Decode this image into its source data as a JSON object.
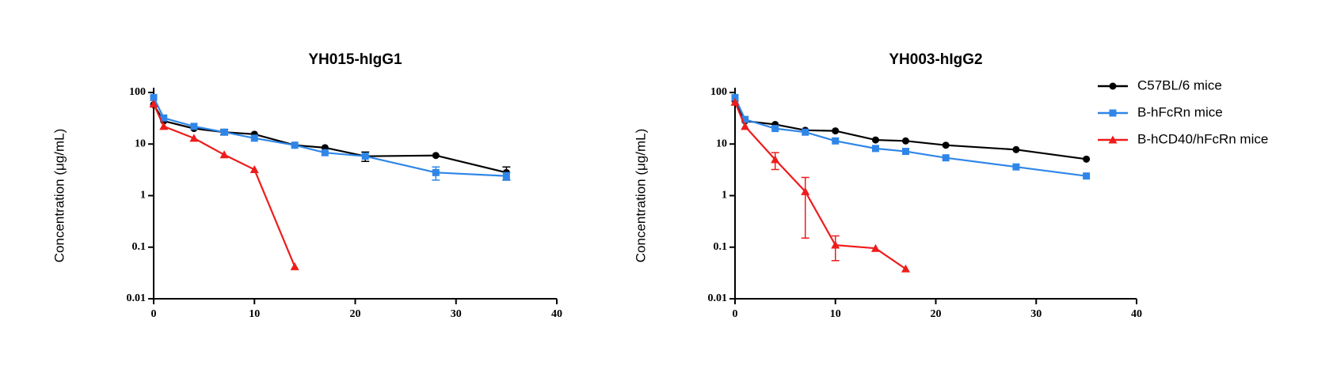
{
  "chart_data": [
    {
      "type": "line",
      "title": "YH015-hIgG1",
      "y_label": "Concentration (μg/mL)",
      "y_scale": "log",
      "xlim": [
        0,
        40
      ],
      "xticks": [
        0,
        10,
        20,
        30,
        40
      ],
      "ylim": [
        0.01,
        100
      ],
      "yticks": [
        0.01,
        0.1,
        1,
        10,
        100
      ],
      "series": [
        {
          "color": "#000000",
          "marker": "circle",
          "x": [
            0,
            1,
            4,
            7,
            10,
            14,
            17,
            21,
            28,
            35
          ],
          "values": [
            58,
            28,
            20,
            17,
            15.5,
            9.5,
            8.5,
            5.8,
            6.0,
            2.8
          ],
          "errors": [
            null,
            null,
            null,
            2,
            null,
            null,
            null,
            1.2,
            null,
            0.8
          ]
        },
        {
          "color": "#2f86e8",
          "marker": "square",
          "x": [
            0,
            1,
            4,
            7,
            10,
            14,
            17,
            21,
            28,
            35
          ],
          "values": [
            80,
            32,
            22,
            17,
            13,
            9.5,
            6.8,
            5.8,
            2.8,
            2.4
          ],
          "errors": [
            null,
            null,
            null,
            null,
            null,
            null,
            null,
            null,
            0.8,
            0.4
          ]
        },
        {
          "color": "#ee1c1c",
          "marker": "triangle",
          "x": [
            0,
            1,
            4,
            7,
            10,
            14
          ],
          "values": [
            60,
            22,
            13,
            6.2,
            3.2,
            0.042
          ]
        }
      ]
    },
    {
      "type": "line",
      "title": "YH003-hIgG2",
      "y_label": "Concentration (μg/mL)",
      "y_scale": "log",
      "legend": "right",
      "xlim": [
        0,
        40
      ],
      "xticks": [
        0,
        10,
        20,
        30,
        40
      ],
      "ylim": [
        0.01,
        100
      ],
      "yticks": [
        0.01,
        0.1,
        1,
        10,
        100
      ],
      "series": [
        {
          "name": "C57BL/6 mice",
          "color": "#000000",
          "marker": "circle",
          "x": [
            0,
            1,
            4,
            7,
            10,
            14,
            17,
            21,
            28,
            35
          ],
          "values": [
            70,
            28,
            24,
            18.5,
            18,
            12,
            11.5,
            9.5,
            7.8,
            5.1
          ]
        },
        {
          "name": "B-hFcRn mice",
          "color": "#2f86e8",
          "marker": "square",
          "x": [
            0,
            1,
            4,
            7,
            10,
            14,
            17,
            21,
            28,
            35
          ],
          "values": [
            80,
            30,
            20,
            17,
            11.5,
            8.2,
            7.2,
            5.4,
            3.6,
            2.4
          ]
        },
        {
          "name": "B-hCD40/hFcRn mice",
          "color": "#ee1c1c",
          "marker": "triangle",
          "x": [
            0,
            1,
            4,
            7,
            10,
            14,
            17
          ],
          "values": [
            65,
            22,
            5,
            1.2,
            0.11,
            0.095,
            0.038
          ],
          "errors": [
            null,
            null,
            1.8,
            1.05,
            0.055,
            null,
            null
          ]
        }
      ]
    }
  ]
}
